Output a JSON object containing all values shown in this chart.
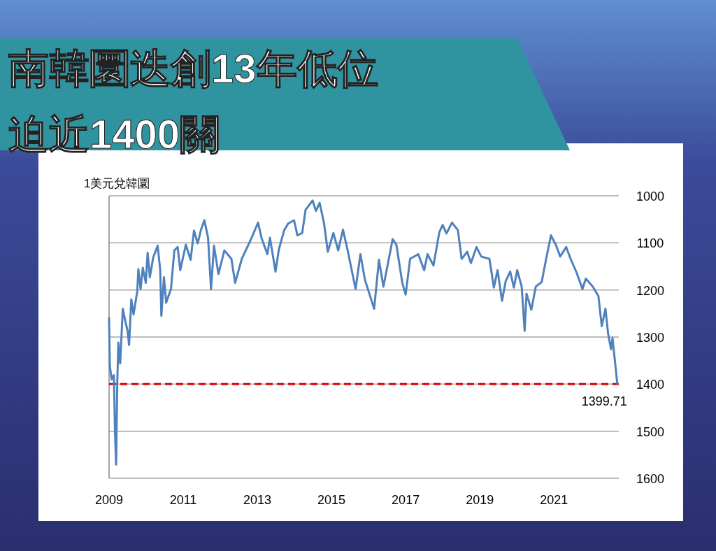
{
  "chart_data": {
    "type": "line",
    "title": "南韓圜迭創13年低位",
    "subtitle": "迫近1400關",
    "ylabel": "1美元兌韓圜",
    "x": [
      2009.0,
      2009.02,
      2009.07,
      2009.13,
      2009.16,
      2009.19,
      2009.22,
      2009.25,
      2009.3,
      2009.37,
      2009.44,
      2009.5,
      2009.54,
      2009.6,
      2009.66,
      2009.76,
      2009.79,
      2009.85,
      2009.91,
      2009.99,
      2010.04,
      2010.1,
      2010.19,
      2010.31,
      2010.38,
      2010.41,
      2010.48,
      2010.54,
      2010.67,
      2010.76,
      2010.85,
      2010.92,
      2011.07,
      2011.2,
      2011.29,
      2011.39,
      2011.48,
      2011.57,
      2011.67,
      2011.75,
      2011.83,
      2011.95,
      2012.11,
      2012.3,
      2012.4,
      2012.58,
      2012.83,
      2013.02,
      2013.11,
      2013.27,
      2013.34,
      2013.49,
      2013.58,
      2013.72,
      2013.83,
      2013.99,
      2014.08,
      2014.21,
      2014.3,
      2014.49,
      2014.58,
      2014.68,
      2014.8,
      2014.9,
      2015.05,
      2015.18,
      2015.31,
      2015.43,
      2015.65,
      2015.78,
      2015.9,
      2016.15,
      2016.28,
      2016.4,
      2016.65,
      2016.75,
      2016.91,
      2017.0,
      2017.12,
      2017.34,
      2017.5,
      2017.59,
      2017.75,
      2017.91,
      2018.0,
      2018.1,
      2018.25,
      2018.41,
      2018.51,
      2018.66,
      2018.76,
      2018.91,
      2019.04,
      2019.26,
      2019.38,
      2019.48,
      2019.6,
      2019.7,
      2019.82,
      2019.92,
      2020.01,
      2020.13,
      2020.21,
      2020.26,
      2020.39,
      2020.51,
      2020.67,
      2020.79,
      2020.92,
      2021.05,
      2021.17,
      2021.33,
      2021.45,
      2021.61,
      2021.77,
      2021.86,
      2022.05,
      2022.2,
      2022.29,
      2022.39,
      2022.46,
      2022.54,
      2022.58,
      2022.71
    ],
    "series": [
      {
        "color": "#4f81bd",
        "values": [
          1260,
          1361,
          1390,
          1381,
          1504,
          1571,
          1400,
          1312,
          1356,
          1240,
          1267,
          1287,
          1317,
          1220,
          1252,
          1203,
          1156,
          1198,
          1153,
          1185,
          1121,
          1173,
          1131,
          1106,
          1158,
          1255,
          1173,
          1227,
          1198,
          1116,
          1109,
          1158,
          1104,
          1136,
          1074,
          1101,
          1072,
          1052,
          1089,
          1198,
          1106,
          1166,
          1116,
          1134,
          1185,
          1134,
          1092,
          1057,
          1089,
          1124,
          1089,
          1161,
          1114,
          1074,
          1059,
          1052,
          1084,
          1079,
          1030,
          1010,
          1032,
          1015,
          1059,
          1119,
          1079,
          1116,
          1072,
          1114,
          1198,
          1124,
          1178,
          1240,
          1136,
          1193,
          1092,
          1104,
          1185,
          1210,
          1134,
          1124,
          1158,
          1124,
          1148,
          1077,
          1062,
          1080,
          1057,
          1073,
          1134,
          1119,
          1143,
          1109,
          1129,
          1134,
          1195,
          1158,
          1223,
          1181,
          1161,
          1195,
          1158,
          1193,
          1287,
          1208,
          1242,
          1193,
          1183,
          1134,
          1084,
          1104,
          1129,
          1109,
          1134,
          1163,
          1198,
          1176,
          1193,
          1213,
          1277,
          1240,
          1292,
          1326,
          1302,
          1399.71
        ]
      }
    ],
    "xlim": [
      2009,
      2022.75
    ],
    "xticks": [
      2009,
      2011,
      2013,
      2015,
      2017,
      2019,
      2021
    ],
    "ylim": [
      1600,
      1000
    ],
    "yticks": [
      1000,
      1100,
      1200,
      1300,
      1400,
      1500,
      1600
    ],
    "grid": "y",
    "ref_lines": [
      {
        "axis": "y",
        "value": 1400,
        "color": "#e00000",
        "line_style": "dashed"
      }
    ],
    "annotations": [
      {
        "text": "1399.71",
        "x": 2022.71,
        "y": 1399.71
      }
    ]
  }
}
